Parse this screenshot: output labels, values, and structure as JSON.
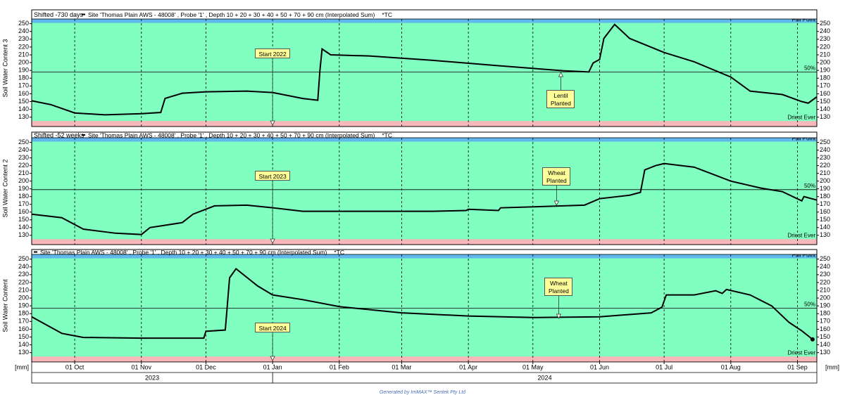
{
  "chart_data": [
    {
      "type": "line",
      "title": "Shifted -730 days",
      "unit": "*TC",
      "ylabel": "Soil Water Content 3",
      "x": [
        "2023-09-11",
        "2023-09-20",
        "2023-10-01",
        "2023-10-15",
        "2023-11-01",
        "2023-11-10",
        "2023-11-12",
        "2023-11-20",
        "2023-12-01",
        "2023-12-20",
        "2024-01-01",
        "2024-01-15",
        "2024-01-22",
        "2024-01-23",
        "2024-01-24",
        "2024-01-28",
        "2024-02-15",
        "2024-03-15",
        "2024-04-15",
        "2024-05-15",
        "2024-05-27",
        "2024-05-29",
        "2024-06-01",
        "2024-06-03",
        "2024-06-08",
        "2024-06-15",
        "2024-07-01",
        "2024-07-15",
        "2024-08-01",
        "2024-08-10",
        "2024-08-25",
        "2024-09-03",
        "2024-09-06",
        "2024-09-10"
      ],
      "series": [
        {
          "name": "Site 'Thomas Plain AWS - 48008' , Probe '1' , Depth 10 + 20 + 30 + 40 + 50 + 70 + 90 cm (Interpolated Sum)",
          "color": "#000000",
          "values": [
            151,
            146,
            135.4,
            133,
            134.5,
            136,
            154,
            160.7,
            162.5,
            163.4,
            161.6,
            154,
            151.7,
            190,
            217.5,
            210,
            208.5,
            203,
            196,
            189.6,
            188,
            199.5,
            204,
            231,
            249,
            231,
            213,
            201,
            181.5,
            163.4,
            159,
            150,
            148,
            156
          ]
        }
      ],
      "ylim": [
        118,
        256
      ],
      "yticks": [
        130,
        140,
        150,
        160,
        170,
        180,
        190,
        200,
        210,
        220,
        230,
        240,
        250
      ],
      "reference_lines": [
        {
          "label": "Full Point",
          "value": 251
        },
        {
          "label": "50%",
          "value": 188
        },
        {
          "label": "Driest Ever",
          "value": 125
        }
      ],
      "annotations": [
        {
          "text": "Start 2022",
          "x": "2024-01-01"
        },
        {
          "text": "Lentil Planted",
          "x": "2024-05-14"
        }
      ]
    },
    {
      "type": "line",
      "title": "Shifted -52 weeks",
      "unit": "*TC",
      "ylabel": "Soil Water Content 2",
      "x": [
        "2023-09-11",
        "2023-09-25",
        "2023-10-05",
        "2023-10-20",
        "2023-11-01",
        "2023-11-05",
        "2023-11-20",
        "2023-11-25",
        "2023-12-05",
        "2023-12-20",
        "2024-01-01",
        "2024-01-15",
        "2024-02-15",
        "2024-03-15",
        "2024-03-31",
        "2024-04-01",
        "2024-04-15",
        "2024-04-16",
        "2024-05-15",
        "2024-05-25",
        "2024-06-01",
        "2024-06-15",
        "2024-06-20",
        "2024-06-22",
        "2024-06-27",
        "2024-07-01",
        "2024-07-15",
        "2024-08-01",
        "2024-08-15",
        "2024-08-25",
        "2024-09-03",
        "2024-09-04",
        "2024-09-10"
      ],
      "series": [
        {
          "name": "Site 'Thomas Plain AWS - 48008' , Probe '1' , Depth 10 + 20 + 30 + 40 + 50 + 70 + 90 cm (Interpolated Sum)",
          "color": "#000000",
          "values": [
            157.3,
            152.7,
            138,
            132.7,
            131,
            140,
            146.4,
            157.3,
            168,
            169,
            165.5,
            161,
            161,
            161,
            162,
            163.6,
            162,
            165.5,
            168,
            169,
            177.3,
            181.8,
            185.5,
            214.5,
            220,
            222.7,
            218,
            200,
            191,
            186.4,
            174.5,
            180,
            175.5
          ]
        }
      ],
      "ylim": [
        118,
        256
      ],
      "yticks": [
        130,
        140,
        150,
        160,
        170,
        180,
        190,
        200,
        210,
        220,
        230,
        240,
        250
      ],
      "reference_lines": [
        {
          "label": "Full Point",
          "value": 251
        },
        {
          "label": "50%",
          "value": 189
        },
        {
          "label": "Driest Ever",
          "value": 125
        }
      ],
      "annotations": [
        {
          "text": "Start 2023",
          "x": "2024-01-01"
        },
        {
          "text": "Wheat Planted",
          "x": "2024-05-12"
        }
      ]
    },
    {
      "type": "line",
      "unit": "*TC",
      "ylabel": "Soil Water Content",
      "x": [
        "2023-09-11",
        "2023-09-25",
        "2023-10-05",
        "2023-11-01",
        "2023-11-30",
        "2023-12-01",
        "2023-12-10",
        "2023-12-12",
        "2023-12-15",
        "2023-12-25",
        "2024-01-01",
        "2024-01-15",
        "2024-02-01",
        "2024-03-01",
        "2024-04-01",
        "2024-05-01",
        "2024-06-01",
        "2024-06-25",
        "2024-06-30",
        "2024-07-02",
        "2024-07-15",
        "2024-07-25",
        "2024-07-28",
        "2024-07-30",
        "2024-08-10",
        "2024-08-20",
        "2024-08-28",
        "2024-09-03",
        "2024-09-08"
      ],
      "series": [
        {
          "name": "Site 'Thomas Plain AWS - 48008' , Probe '1' , Depth 10 + 20 + 30 + 40 + 50 + 70 + 90 cm (Interpolated Sum)",
          "color": "#000000",
          "values": [
            176,
            154.7,
            149.5,
            148.6,
            148.6,
            157.4,
            159,
            226,
            237.6,
            215.6,
            204,
            198,
            189,
            181,
            177,
            175,
            176,
            181,
            188.3,
            204,
            204,
            209.4,
            206,
            211,
            204,
            190,
            169,
            158,
            147
          ]
        }
      ],
      "ylim": [
        118,
        256
      ],
      "yticks": [
        130,
        140,
        150,
        160,
        170,
        180,
        190,
        200,
        210,
        220,
        230,
        240,
        250
      ],
      "reference_lines": [
        {
          "label": "Full Point",
          "value": 251
        },
        {
          "label": "50%",
          "value": 187
        },
        {
          "label": "Driest Ever",
          "value": 125
        }
      ],
      "annotations": [
        {
          "text": "Start 2024",
          "x": "2024-01-01"
        },
        {
          "text": "Wheat Planted",
          "x": "2024-05-13"
        }
      ]
    }
  ],
  "x_axis": {
    "xlim": [
      "2023-09-11",
      "2024-09-10"
    ],
    "unit_label": "[mm]",
    "xticks": [
      {
        "value": "2023-10-01",
        "label": "01 Oct"
      },
      {
        "value": "2023-11-01",
        "label": "01 Nov"
      },
      {
        "value": "2023-12-01",
        "label": "01 Dec"
      },
      {
        "value": "2024-01-01",
        "label": "01 Jan"
      },
      {
        "value": "2024-02-01",
        "label": "01 Feb"
      },
      {
        "value": "2024-03-01",
        "label": "01 Mar"
      },
      {
        "value": "2024-04-01",
        "label": "01 Apr"
      },
      {
        "value": "2024-05-01",
        "label": "01 May"
      },
      {
        "value": "2024-06-01",
        "label": "01 Jun"
      },
      {
        "value": "2024-07-01",
        "label": "01 Jul"
      },
      {
        "value": "2024-08-01",
        "label": "01 Aug"
      },
      {
        "value": "2024-09-01",
        "label": "01 Sep"
      }
    ],
    "years": [
      "2023",
      "2024"
    ]
  },
  "footer": "Generated by IrriMAX™ Sentek Pty Ltd"
}
